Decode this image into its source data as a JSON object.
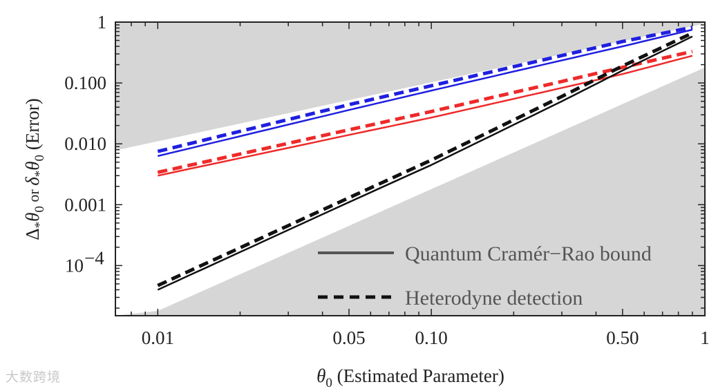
{
  "chart_data": {
    "type": "line",
    "scale": {
      "x": "log",
      "y": "log"
    },
    "xlim": [
      0.007,
      1.0
    ],
    "ylim": [
      1.5e-05,
      1.0
    ],
    "xlabel": {
      "symbol": "θ",
      "sub": "0",
      "text": " (Estimated Parameter)"
    },
    "ylabel": "Δ*θ0 or δ*θ0 (Error)",
    "xticks": [
      {
        "value": 0.01,
        "label": "0.01"
      },
      {
        "value": 0.05,
        "label": "0.05"
      },
      {
        "value": 0.1,
        "label": "0.10"
      },
      {
        "value": 0.5,
        "label": "0.50"
      },
      {
        "value": 1.0,
        "label": "1"
      }
    ],
    "yticks": [
      {
        "value": 1.0,
        "label": "1"
      },
      {
        "value": 0.1,
        "label": "0.100"
      },
      {
        "value": 0.01,
        "label": "0.010"
      },
      {
        "value": 0.001,
        "label": "0.001"
      },
      {
        "value": 0.0001,
        "label": "10",
        "exp": "−4"
      }
    ],
    "shaded_regions": {
      "upper_boundary": {
        "x": [
          0.007,
          1.0
        ],
        "y": [
          0.0078,
          0.95
        ]
      },
      "lower_boundary": {
        "x": [
          0.01,
          1.0
        ],
        "y": [
          1.8e-05,
          0.18
        ]
      },
      "color": "#d6d6d6"
    },
    "series": [
      {
        "name": "Blue Cramér–Rao bound",
        "color": "#1f1fe0",
        "style": "solid",
        "x": [
          0.01,
          0.05,
          0.1,
          0.5,
          0.9
        ],
        "y": [
          0.0063,
          0.036,
          0.075,
          0.4,
          0.75
        ]
      },
      {
        "name": "Blue heterodyne",
        "color": "#1f1fe0",
        "style": "dashed",
        "x": [
          0.01,
          0.05,
          0.1,
          0.5,
          0.9
        ],
        "y": [
          0.0075,
          0.044,
          0.09,
          0.48,
          0.82
        ]
      },
      {
        "name": "Red Cramér–Rao bound",
        "color": "#ee2a2a",
        "style": "solid",
        "x": [
          0.01,
          0.05,
          0.1,
          0.5,
          0.9
        ],
        "y": [
          0.003,
          0.014,
          0.027,
          0.14,
          0.28
        ]
      },
      {
        "name": "Red heterodyne",
        "color": "#ee2a2a",
        "style": "dashed",
        "x": [
          0.01,
          0.05,
          0.1,
          0.5,
          0.9
        ],
        "y": [
          0.0034,
          0.017,
          0.034,
          0.18,
          0.33
        ]
      },
      {
        "name": "Black Cramér–Rao bound",
        "color": "#111111",
        "style": "solid",
        "x": [
          0.01,
          0.05,
          0.1,
          0.3,
          0.5,
          0.9
        ],
        "y": [
          4e-05,
          0.0011,
          0.0045,
          0.05,
          0.16,
          0.58
        ]
      },
      {
        "name": "Black heterodyne",
        "color": "#111111",
        "style": "dashed",
        "x": [
          0.01,
          0.05,
          0.1,
          0.3,
          0.5,
          0.9
        ],
        "y": [
          4.7e-05,
          0.0013,
          0.0054,
          0.06,
          0.19,
          0.66
        ]
      }
    ],
    "legend": {
      "placement": "bottom-right",
      "entries": [
        {
          "label": "Quantum Cramér−Rao bound",
          "style": "solid",
          "color": "#555555"
        },
        {
          "label": "Heterodyne detection",
          "style": "dashed",
          "color": "#111111"
        }
      ]
    }
  },
  "watermark": "大数跨境"
}
